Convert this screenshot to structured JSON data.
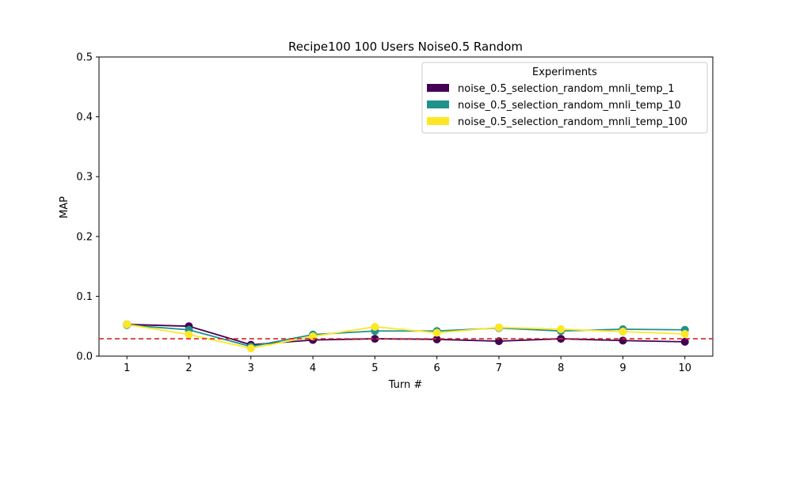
{
  "chart_data": {
    "type": "line",
    "title": "Recipe100 100 Users Noise0.5 Random",
    "xlabel": "Turn #",
    "ylabel": "MAP",
    "x": [
      1,
      2,
      3,
      4,
      5,
      6,
      7,
      8,
      9,
      10
    ],
    "xlim": [
      0.55,
      10.45
    ],
    "ylim": [
      0.0,
      0.5
    ],
    "yticks": [
      0.0,
      0.1,
      0.2,
      0.3,
      0.4,
      0.5
    ],
    "ytick_labels": [
      "0.0",
      "0.1",
      "0.2",
      "0.3",
      "0.4",
      "0.5"
    ],
    "xtick_labels": [
      "1",
      "2",
      "3",
      "4",
      "5",
      "6",
      "7",
      "8",
      "9",
      "10"
    ],
    "grid": false,
    "legend": {
      "title": "Experiments",
      "placement": "top-right"
    },
    "series": [
      {
        "name": "noise_0.5_selection_random_mnli_temp_1",
        "color": "#440154",
        "values": [
          0.053,
          0.05,
          0.019,
          0.027,
          0.029,
          0.028,
          0.025,
          0.029,
          0.026,
          0.024
        ]
      },
      {
        "name": "noise_0.5_selection_random_mnli_temp_10",
        "color": "#21918c",
        "values": [
          0.052,
          0.044,
          0.016,
          0.036,
          0.042,
          0.042,
          0.047,
          0.042,
          0.045,
          0.044
        ]
      },
      {
        "name": "noise_0.5_selection_random_mnli_temp_100",
        "color": "#fde725",
        "values": [
          0.053,
          0.036,
          0.013,
          0.033,
          0.049,
          0.039,
          0.048,
          0.045,
          0.041,
          0.037
        ]
      }
    ],
    "reference_line": {
      "value": 0.029,
      "color": "#d62728",
      "style": "dashed"
    }
  }
}
